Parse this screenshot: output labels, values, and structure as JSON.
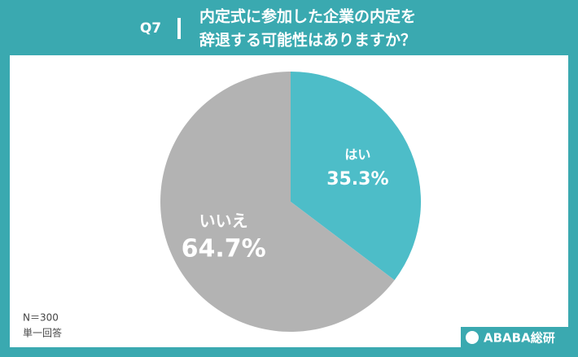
{
  "chart_data": {
    "type": "pie",
    "question": "Q7",
    "title_lines": [
      "内定式に参加した企業の内定を",
      "辞退する可能性はありますか？"
    ],
    "categories": [
      "はい",
      "いいえ"
    ],
    "values": [
      35.3,
      64.7
    ],
    "value_labels": [
      "35.3%",
      "64.7%"
    ],
    "colors": [
      "#4dbdc8",
      "#b3b3b3"
    ],
    "notes": [
      "N＝300",
      "単一回答"
    ],
    "brand": "ABABA総研"
  }
}
